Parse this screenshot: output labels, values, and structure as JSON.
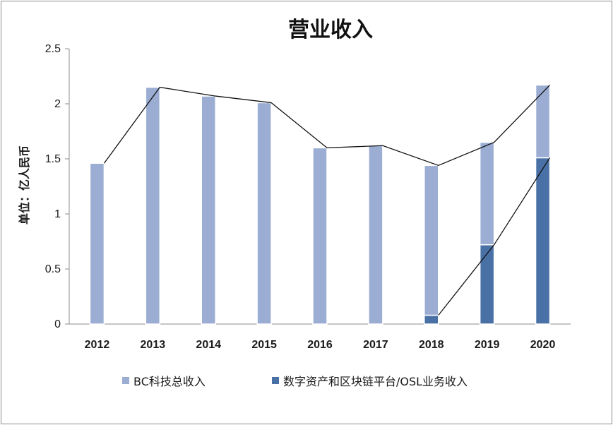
{
  "chart_data": {
    "type": "bar",
    "stacked": true,
    "title": "营业收入",
    "xlabel": "",
    "ylabel": "单位：亿人民币",
    "ylim": [
      0,
      2.5
    ],
    "yticks": [
      "0",
      "0.5",
      "1",
      "1.5",
      "2",
      "2.5"
    ],
    "ytick_values": [
      0,
      0.5,
      1,
      1.5,
      2,
      2.5
    ],
    "categories": [
      "2012",
      "2013",
      "2014",
      "2015",
      "2016",
      "2017",
      "2018",
      "2019",
      "2020"
    ],
    "series": [
      {
        "name": "数字资产和区块链平台/OSL业务收入",
        "color": "#4a71a6",
        "values": [
          0,
          0,
          0,
          0,
          0,
          0,
          0.08,
          0.72,
          1.51
        ]
      },
      {
        "name": "BC科技总收入",
        "color": "#9badd3",
        "values": [
          1.46,
          2.15,
          2.07,
          2.01,
          1.6,
          1.62,
          1.36,
          0.93,
          0.66
        ]
      }
    ],
    "totals": [
      1.46,
      2.15,
      2.07,
      2.01,
      1.6,
      1.62,
      1.44,
      1.65,
      2.17
    ],
    "legend": [
      "BC科技总收入",
      "数字资产和区块链平台/OSL业务收入"
    ],
    "legend_position": "bottom",
    "grid": false
  }
}
